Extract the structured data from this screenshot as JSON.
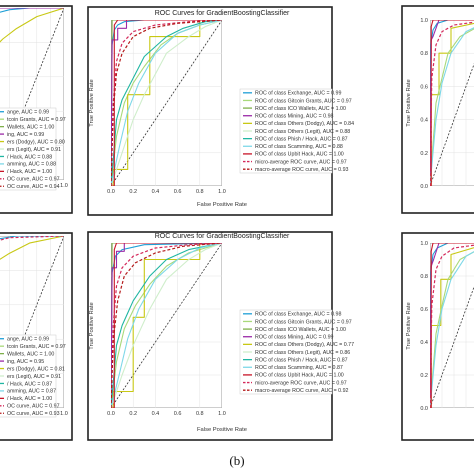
{
  "caption": "(b)",
  "colors": {
    "Exchange": "#1f9fd6",
    "Gitcoin Grants": "#a9d97a",
    "ICO Wallets": "#7fb04a",
    "Mining": "#9b2aa8",
    "Others (Dodgy)": "#c8c814",
    "Others (Legit)": "#cfeecb",
    "Phish / Hack": "#20b6a2",
    "Scamming": "#7ed8e8",
    "Upbit Hack": "#c81428",
    "micro-average": "#d4285a",
    "macro-average": "#b41a1a"
  },
  "chart_data": [
    {
      "type": "line",
      "title": "",
      "xlabel": "",
      "ylabel": "",
      "xlim": [
        0,
        1
      ],
      "ylim": [
        0,
        1
      ],
      "xticks": [
        "0.8",
        "1.0"
      ],
      "yticks": [],
      "grid": true,
      "legend_placement": "lower-right",
      "legend": [
        "ange, AUC = 0.99",
        "tcoin Grants, AUC = 0.97",
        "Wallets, AUC = 1.00",
        "ing, AUC = 0.99",
        "ers (Dodgy), AUC = 0.80",
        "ers (Legit), AUC = 0.91",
        "/ Hack, AUC = 0.88",
        "amming, AUC = 0.88",
        "/ Hack, AUC = 1.00",
        "OC curve, AUC = 0.97",
        "OC curve, AUC = 0.94"
      ],
      "series": [
        {
          "key": "Others (Dodgy)",
          "x": [
            0,
            0.1,
            0.3,
            0.6,
            1
          ],
          "y": [
            0.78,
            0.82,
            0.88,
            0.95,
            1
          ]
        },
        {
          "key": "Exchange",
          "x": [
            0,
            0.2,
            0.5,
            1
          ],
          "y": [
            0.97,
            0.99,
            1,
            1
          ]
        },
        {
          "key": "Mining",
          "x": [
            0,
            0.05,
            1
          ],
          "y": [
            0.98,
            1,
            1
          ]
        }
      ]
    },
    {
      "type": "line",
      "title": "ROC Curves for GradientBoostingClassifier",
      "xlabel": "False Positive Rate",
      "ylabel": "True Positive Rate",
      "xlim": [
        0,
        1
      ],
      "ylim": [
        0,
        1
      ],
      "xticks": [
        "0.0",
        "0.2",
        "0.4",
        "0.6",
        "0.8",
        "1.0"
      ],
      "yticks": [],
      "grid": true,
      "legend_placement": "lower-right",
      "legend": [
        "ROC of class Exchange, AUC = 0.99",
        "ROC of class Gitcoin Grants, AUC = 0.97",
        "ROC of class ICO Wallets, AUC = 1.00",
        "ROC of class Mining, AUC = 0.98",
        "ROC of class Others (Dodgy), AUC = 0.84",
        "ROC of class Others (Legit), AUC = 0.88",
        "ROC of class Phish / Hack, AUC = 0.87",
        "ROC of class Scamming, AUC = 0.88",
        "ROC of class Upbit Hack, AUC = 1.00",
        "micro-average ROC curve, AUC = 0.97",
        "macro-average ROC curve, AUC = 0.93"
      ],
      "series": [
        {
          "key": "Exchange",
          "x": [
            0,
            0.01,
            0.03,
            0.06,
            0.12,
            0.3,
            1
          ],
          "y": [
            0,
            0.85,
            0.94,
            0.97,
            0.99,
            1,
            1
          ]
        },
        {
          "key": "Gitcoin Grants",
          "x": [
            0,
            0.05,
            0.12,
            0.2,
            0.3,
            0.45,
            0.6,
            0.8,
            1
          ],
          "y": [
            0,
            0.3,
            0.5,
            0.62,
            0.72,
            0.85,
            0.92,
            0.97,
            1
          ]
        },
        {
          "key": "ICO Wallets",
          "x": [
            0,
            0.01,
            1
          ],
          "y": [
            0,
            1,
            1
          ]
        },
        {
          "key": "Mining",
          "x": [
            0,
            0.01,
            0.06,
            0.06,
            0.14,
            0.14,
            1
          ],
          "y": [
            0,
            0.88,
            0.88,
            0.95,
            0.95,
            1,
            1
          ]
        },
        {
          "key": "Others (Dodgy)",
          "x": [
            0,
            0.02,
            0.02,
            0.15,
            0.15,
            0.35,
            0.35,
            0.8,
            0.8,
            1
          ],
          "y": [
            0,
            0,
            0.1,
            0.1,
            0.55,
            0.55,
            0.9,
            0.9,
            1,
            1
          ]
        },
        {
          "key": "Others (Legit)",
          "x": [
            0,
            0.1,
            0.2,
            0.3,
            0.5,
            0.7,
            0.85,
            1
          ],
          "y": [
            0,
            0.2,
            0.4,
            0.55,
            0.8,
            0.9,
            0.96,
            1
          ]
        },
        {
          "key": "Phish / Hack",
          "x": [
            0,
            0.05,
            0.1,
            0.2,
            0.3,
            0.5,
            0.65,
            0.85,
            1
          ],
          "y": [
            0,
            0.4,
            0.52,
            0.65,
            0.78,
            0.9,
            0.95,
            0.99,
            1
          ]
        },
        {
          "key": "Scamming",
          "x": [
            0,
            0.08,
            0.15,
            0.25,
            0.4,
            0.6,
            0.8,
            1
          ],
          "y": [
            0,
            0.25,
            0.45,
            0.62,
            0.8,
            0.92,
            0.97,
            1
          ]
        },
        {
          "key": "Upbit Hack",
          "x": [
            0,
            0.03,
            0.03,
            0.06,
            1
          ],
          "y": [
            0,
            0,
            0.97,
            1,
            1
          ]
        },
        {
          "key": "micro-average",
          "x": [
            0,
            0.02,
            0.05,
            0.1,
            0.2,
            0.4,
            0.7,
            1
          ],
          "y": [
            0,
            0.5,
            0.75,
            0.86,
            0.93,
            0.97,
            0.99,
            1
          ]
        },
        {
          "key": "macro-average",
          "x": [
            0,
            0.02,
            0.05,
            0.1,
            0.2,
            0.35,
            0.6,
            1
          ],
          "y": [
            0,
            0.45,
            0.68,
            0.8,
            0.9,
            0.95,
            0.98,
            1
          ]
        }
      ]
    },
    {
      "type": "line",
      "title": "",
      "xlabel": "",
      "ylabel": "True Positive Rate",
      "xlim": [
        0,
        1
      ],
      "ylim": [
        0,
        1
      ],
      "xticks": [],
      "yticks": [
        "0.0",
        "0.2",
        "0.4",
        "0.6",
        "0.8",
        "1.0"
      ],
      "grid": true,
      "legend_placement": "lower-right",
      "legend": [],
      "series": [
        {
          "key": "Exchange",
          "x": [
            0,
            0.01,
            0.05,
            0.12,
            0.3,
            1
          ],
          "y": [
            0,
            0.85,
            0.94,
            0.98,
            1,
            1
          ]
        },
        {
          "key": "Mining",
          "x": [
            0,
            0.02,
            0.05,
            0.15,
            1
          ],
          "y": [
            0,
            0.88,
            0.9,
            1,
            1
          ]
        },
        {
          "key": "Others (Dodgy)",
          "x": [
            0,
            0.02,
            0.02,
            0.15,
            0.15,
            0.35,
            0.35,
            1
          ],
          "y": [
            0,
            0,
            0.55,
            0.55,
            0.8,
            0.8,
            0.95,
            1
          ]
        },
        {
          "key": "Gitcoin Grants",
          "x": [
            0,
            0.1,
            0.2,
            0.3,
            0.5,
            1
          ],
          "y": [
            0,
            0.5,
            0.65,
            0.8,
            0.9,
            1
          ]
        },
        {
          "key": "Scamming",
          "x": [
            0,
            0.1,
            0.2,
            0.35,
            0.6,
            1
          ],
          "y": [
            0,
            0.4,
            0.62,
            0.8,
            0.93,
            1
          ]
        },
        {
          "key": "Upbit Hack",
          "x": [
            0,
            0.02,
            0.02,
            0.05,
            1
          ],
          "y": [
            0,
            0,
            0.96,
            1,
            1
          ]
        },
        {
          "key": "micro-average",
          "x": [
            0,
            0.03,
            0.1,
            0.2,
            0.4,
            1
          ],
          "y": [
            0,
            0.65,
            0.85,
            0.93,
            0.97,
            1
          ]
        }
      ]
    },
    {
      "type": "line",
      "title": "",
      "xlabel": "",
      "ylabel": "",
      "xlim": [
        0,
        1
      ],
      "ylim": [
        0,
        1
      ],
      "xticks": [
        "0.8",
        "1.0"
      ],
      "yticks": [],
      "grid": true,
      "legend_placement": "lower-right",
      "legend": [
        "ange, AUC = 0.99",
        "tcoin Grants, AUC = 0.97",
        "Wallets, AUC = 1.00",
        "ing, AUC = 0.95",
        "ers (Dodgy), AUC = 0.81",
        "ers (Legit), AUC = 0.91",
        "/ Hack, AUC = 0.87",
        "amming, AUC = 0.87",
        "/ Hack, AUC = 1.00",
        "OC curve, AUC = 0.97",
        "OC curve, AUC = 0.93"
      ],
      "series": [
        {
          "key": "Others (Dodgy)",
          "x": [
            0,
            0.2,
            0.5,
            1
          ],
          "y": [
            0.85,
            0.9,
            0.96,
            1
          ]
        },
        {
          "key": "Exchange",
          "x": [
            0,
            0.3,
            1
          ],
          "y": [
            0.98,
            1,
            1
          ]
        },
        {
          "key": "micro-average",
          "x": [
            0,
            0.2,
            1
          ],
          "y": [
            0.97,
            0.99,
            1
          ]
        }
      ]
    },
    {
      "type": "line",
      "title": "ROC Curves for GradientBoostingClassifier",
      "xlabel": "False Positive Rate",
      "ylabel": "True Positive Rate",
      "xlim": [
        0,
        1
      ],
      "ylim": [
        0,
        1
      ],
      "xticks": [
        "0.0",
        "0.2",
        "0.4",
        "0.6",
        "0.8",
        "1.0"
      ],
      "yticks": [],
      "grid": true,
      "legend_placement": "lower-right",
      "legend": [
        "ROC of class Exchange, AUC = 0.98",
        "ROC of class Gitcoin Grants, AUC = 0.97",
        "ROC of class ICO Wallets, AUC = 1.00",
        "ROC of class Mining, AUC = 0.99",
        "ROC of class Others (Dodgy), AUC = 0.77",
        "ROC of class Others (Legit), AUC = 0.86",
        "ROC of class Phish / Hack, AUC = 0.87",
        "ROC of class Scamming, AUC = 0.87",
        "ROC of class Upbit Hack, AUC = 1.00",
        "micro-average ROC curve, AUC = 0.97",
        "macro-average ROC curve, AUC = 0.92"
      ],
      "series": [
        {
          "key": "Exchange",
          "x": [
            0,
            0.01,
            0.04,
            0.1,
            0.3,
            1
          ],
          "y": [
            0,
            0.82,
            0.92,
            0.96,
            0.99,
            1
          ]
        },
        {
          "key": "Gitcoin Grants",
          "x": [
            0,
            0.05,
            0.12,
            0.22,
            0.35,
            0.5,
            0.7,
            1
          ],
          "y": [
            0,
            0.28,
            0.48,
            0.62,
            0.75,
            0.86,
            0.94,
            1
          ]
        },
        {
          "key": "ICO Wallets",
          "x": [
            0,
            0.01,
            1
          ],
          "y": [
            0,
            1,
            1
          ]
        },
        {
          "key": "Mining",
          "x": [
            0,
            0.01,
            0.05,
            0.05,
            0.12,
            0.12,
            1
          ],
          "y": [
            0,
            0.85,
            0.85,
            0.95,
            0.95,
            1,
            1
          ]
        },
        {
          "key": "Others (Dodgy)",
          "x": [
            0,
            0.02,
            0.02,
            0.2,
            0.2,
            0.3,
            0.3,
            0.8,
            0.8,
            1
          ],
          "y": [
            0,
            0,
            0.1,
            0.1,
            0.55,
            0.55,
            0.9,
            0.9,
            1,
            1
          ]
        },
        {
          "key": "Others (Legit)",
          "x": [
            0,
            0.1,
            0.2,
            0.35,
            0.5,
            0.7,
            0.85,
            1
          ],
          "y": [
            0,
            0.2,
            0.38,
            0.6,
            0.78,
            0.9,
            0.96,
            1
          ]
        },
        {
          "key": "Phish / Hack",
          "x": [
            0,
            0.05,
            0.1,
            0.2,
            0.35,
            0.5,
            0.7,
            1
          ],
          "y": [
            0,
            0.38,
            0.5,
            0.65,
            0.8,
            0.9,
            0.96,
            1
          ]
        },
        {
          "key": "Scamming",
          "x": [
            0,
            0.08,
            0.15,
            0.25,
            0.4,
            0.6,
            0.8,
            1
          ],
          "y": [
            0,
            0.22,
            0.42,
            0.6,
            0.78,
            0.9,
            0.97,
            1
          ]
        },
        {
          "key": "Upbit Hack",
          "x": [
            0,
            0.03,
            0.03,
            0.05,
            1
          ],
          "y": [
            0,
            0,
            0.96,
            1,
            1
          ]
        },
        {
          "key": "micro-average",
          "x": [
            0,
            0.02,
            0.05,
            0.1,
            0.2,
            0.4,
            0.7,
            1
          ],
          "y": [
            0,
            0.5,
            0.74,
            0.85,
            0.92,
            0.97,
            0.99,
            1
          ]
        },
        {
          "key": "macro-average",
          "x": [
            0,
            0.02,
            0.06,
            0.12,
            0.22,
            0.4,
            0.65,
            1
          ],
          "y": [
            0,
            0.4,
            0.65,
            0.8,
            0.88,
            0.94,
            0.98,
            1
          ]
        }
      ]
    },
    {
      "type": "line",
      "title": "",
      "xlabel": "",
      "ylabel": "True Positive Rate",
      "xlim": [
        0,
        1
      ],
      "ylim": [
        0,
        1
      ],
      "xticks": [],
      "yticks": [
        "0.0",
        "0.2",
        "0.4",
        "0.6",
        "0.8",
        "1.0"
      ],
      "grid": true,
      "legend_placement": "lower-right",
      "legend": [],
      "series": [
        {
          "key": "Exchange",
          "x": [
            0,
            0.01,
            0.05,
            0.12,
            0.3,
            1
          ],
          "y": [
            0,
            0.82,
            0.93,
            0.97,
            1,
            1
          ]
        },
        {
          "key": "Mining",
          "x": [
            0,
            0.02,
            0.06,
            0.15,
            1
          ],
          "y": [
            0,
            0.86,
            0.9,
            1,
            1
          ]
        },
        {
          "key": "Others (Dodgy)",
          "x": [
            0,
            0.02,
            0.02,
            0.18,
            0.18,
            0.35,
            0.35,
            1
          ],
          "y": [
            0,
            0,
            0.5,
            0.5,
            0.78,
            0.78,
            0.93,
            1
          ]
        },
        {
          "key": "Gitcoin Grants",
          "x": [
            0,
            0.1,
            0.2,
            0.3,
            0.5,
            1
          ],
          "y": [
            0,
            0.45,
            0.62,
            0.78,
            0.9,
            1
          ]
        },
        {
          "key": "Scamming",
          "x": [
            0,
            0.1,
            0.2,
            0.35,
            0.6,
            1
          ],
          "y": [
            0,
            0.38,
            0.6,
            0.78,
            0.92,
            1
          ]
        },
        {
          "key": "Upbit Hack",
          "x": [
            0,
            0.02,
            0.02,
            0.05,
            1
          ],
          "y": [
            0,
            0,
            0.95,
            1,
            1
          ]
        },
        {
          "key": "micro-average",
          "x": [
            0,
            0.03,
            0.1,
            0.2,
            0.4,
            1
          ],
          "y": [
            0,
            0.62,
            0.84,
            0.92,
            0.97,
            1
          ]
        }
      ]
    }
  ]
}
